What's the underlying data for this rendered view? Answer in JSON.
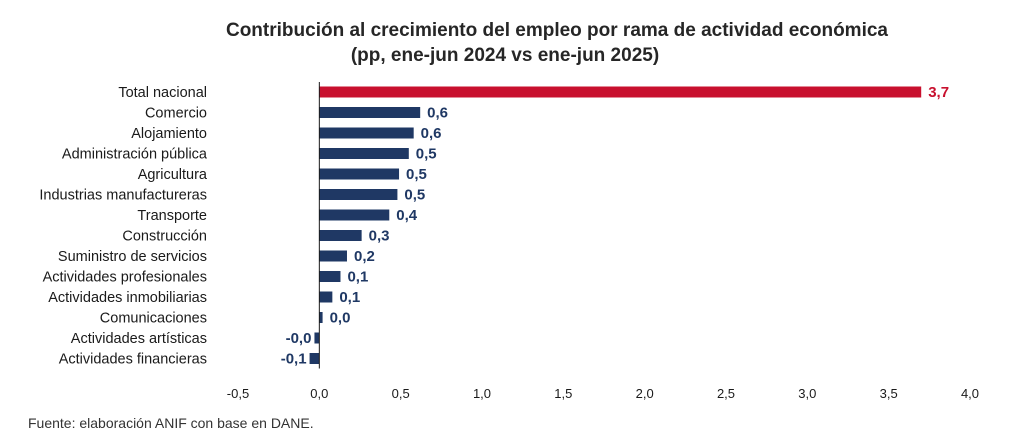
{
  "chart_data": {
    "type": "bar",
    "orientation": "horizontal",
    "title": "Contribución al crecimiento del empleo por rama de actividad económica",
    "subtitle": "(pp, ene-jun 2024 vs ene-jun 2025)",
    "source": "Fuente: elaboración ANIF con base en DANE.",
    "categories": [
      "Total nacional",
      "Comercio",
      "Alojamiento",
      "Administración pública",
      "Agricultura",
      "Industrias manufactureras",
      "Transporte",
      "Construcción",
      "Suministro de servicios",
      "Actividades profesionales",
      "Actividades inmobiliarias",
      "Comunicaciones",
      "Actividades artísticas",
      "Actividades financieras"
    ],
    "values": [
      3.7,
      0.62,
      0.58,
      0.55,
      0.49,
      0.48,
      0.43,
      0.26,
      0.17,
      0.13,
      0.08,
      0.02,
      -0.03,
      -0.06
    ],
    "value_labels": [
      "3,7",
      "0,6",
      "0,6",
      "0,5",
      "0,5",
      "0,5",
      "0,4",
      "0,3",
      "0,2",
      "0,1",
      "0,1",
      "0,0",
      "-0,0",
      "-0,1"
    ],
    "xlim": [
      -0.5,
      4.0
    ],
    "xticks": [
      -0.5,
      0.0,
      0.5,
      1.0,
      1.5,
      2.0,
      2.5,
      3.0,
      3.5,
      4.0
    ],
    "xtick_labels": [
      "-0,5",
      "0,0",
      "0,5",
      "1,0",
      "1,5",
      "2,0",
      "2,5",
      "3,0",
      "3,5",
      "4,0"
    ],
    "grid": false,
    "xlabel": "",
    "ylabel": "",
    "colors": {
      "highlight": "#c8102e",
      "default": "#1f3864",
      "axis": "#1a1a1a"
    }
  }
}
